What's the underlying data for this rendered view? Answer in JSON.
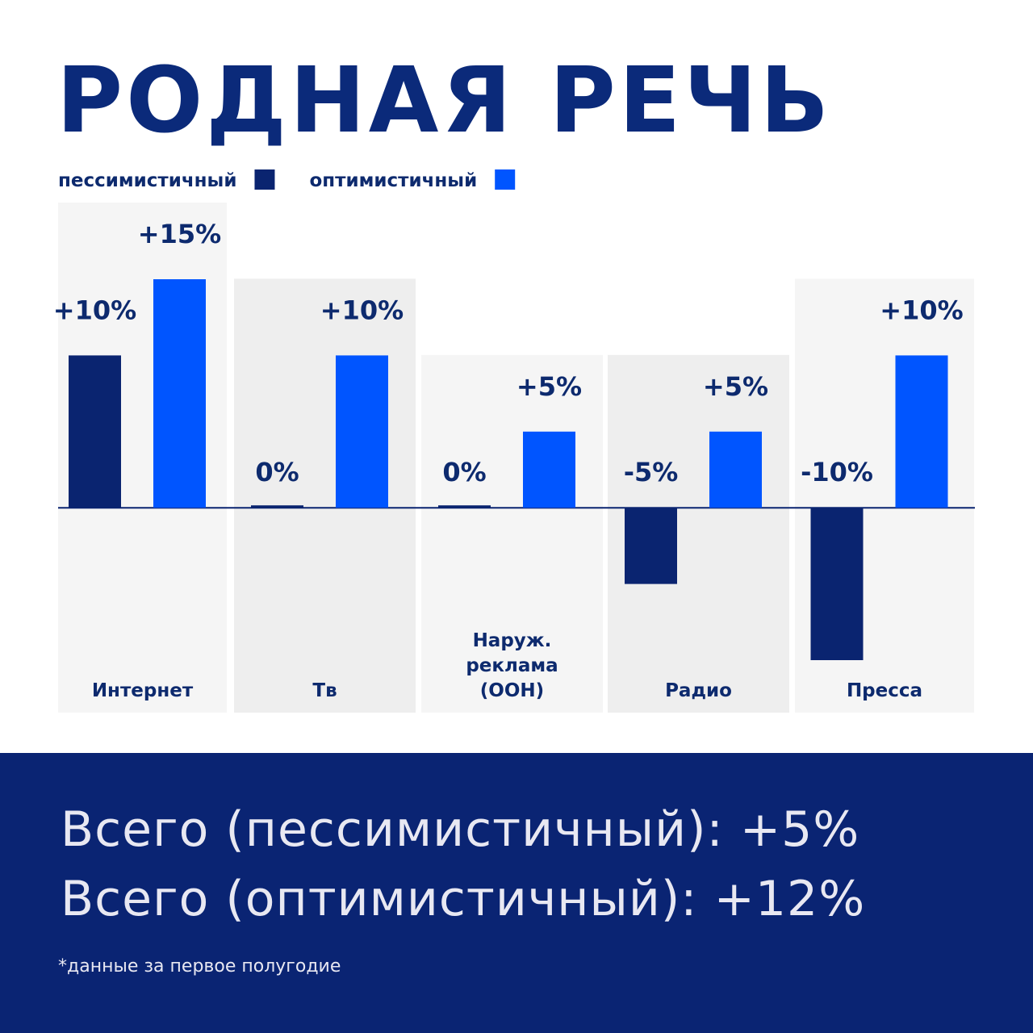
{
  "chart_data": {
    "type": "bar",
    "title": "РОДНАЯ РЕЧЬ",
    "categories": [
      "Интернет",
      "Тв",
      "Наруж.\nреклама\n(ООН)",
      "Радио",
      "Пресса"
    ],
    "series": [
      {
        "name": "пессимистичный",
        "color": "#0a2470",
        "values": [
          10,
          0,
          0,
          -5,
          -10
        ],
        "value_labels": [
          "+10%",
          "0%",
          "0%",
          "-5%",
          "-10%"
        ]
      },
      {
        "name": "оптимистичный",
        "color": "#0055ff",
        "values": [
          15,
          10,
          5,
          5,
          10
        ],
        "value_labels": [
          "+15%",
          "+10%",
          "+5%",
          "+5%",
          "+10%"
        ]
      }
    ],
    "ylim": [
      -10,
      15
    ]
  },
  "summary": {
    "lines": [
      "Всего (пессимистичный): +5%",
      "Всего (оптимистичный): +12%"
    ],
    "note": "*данные за первое полугодие"
  }
}
